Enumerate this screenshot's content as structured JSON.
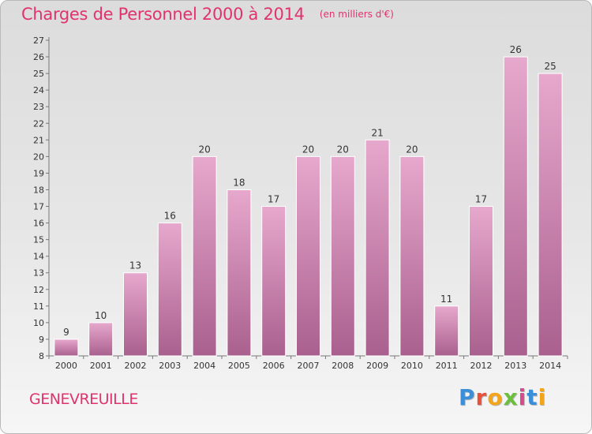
{
  "header": {
    "title": "Charges de Personnel 2000 à 2014",
    "unit": "(en milliers d'€)"
  },
  "footer": {
    "commune": "GENEVREUILLE",
    "logo": "Proxiti"
  },
  "colors": {
    "accent": "#e0336e",
    "bar": "#c77aa5"
  },
  "chart_data": {
    "type": "bar",
    "title": "Charges de Personnel 2000 à 2014",
    "subtitle": "(en milliers d'€)",
    "categories": [
      "2000",
      "2001",
      "2002",
      "2003",
      "2004",
      "2005",
      "2006",
      "2007",
      "2008",
      "2009",
      "2010",
      "2011",
      "2012",
      "2013",
      "2014"
    ],
    "values": [
      9,
      10,
      13,
      16,
      20,
      18,
      17,
      20,
      20,
      21,
      20,
      11,
      17,
      26,
      25
    ],
    "yticks": [
      8,
      9,
      10,
      11,
      12,
      13,
      14,
      15,
      16,
      17,
      18,
      19,
      20,
      21,
      22,
      23,
      24,
      25,
      26,
      27
    ],
    "ylim": [
      8,
      27
    ],
    "grid": false,
    "legend": "none",
    "xlabel": "",
    "ylabel": ""
  }
}
